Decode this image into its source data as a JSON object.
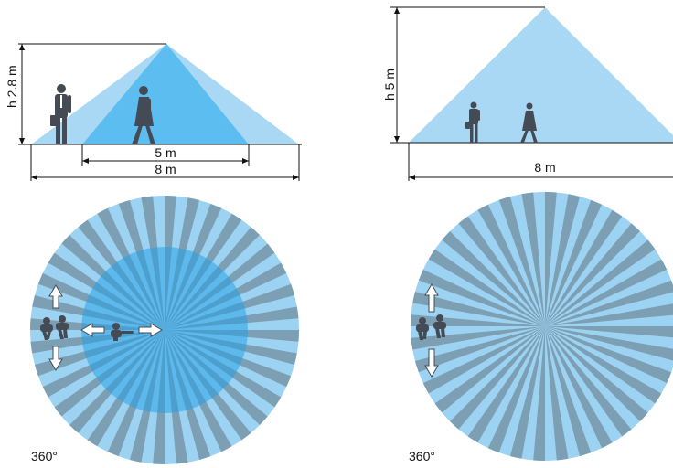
{
  "colors": {
    "cone_light": "#a9d8f5",
    "cone_dark": "#5bbdf0",
    "ray_light": "#9dd3f2",
    "ray_dark": "#7d9fb4",
    "inner_overlay": "#1e9fe6",
    "figure": "#454b55",
    "line": "#111111"
  },
  "left_panel": {
    "height_label": "h 2.8 m",
    "inner_width_label": "5 m",
    "outer_width_label": "8 m",
    "angle_label": "360°",
    "inner_zone_icon": "walking-person-icon",
    "outer_zone_icon": "person-with-briefcase-icon"
  },
  "right_panel": {
    "height_label": "h 5 m",
    "width_label": "8 m",
    "angle_label": "360°",
    "icons": [
      "person-with-briefcase-icon",
      "walking-person-icon"
    ]
  }
}
